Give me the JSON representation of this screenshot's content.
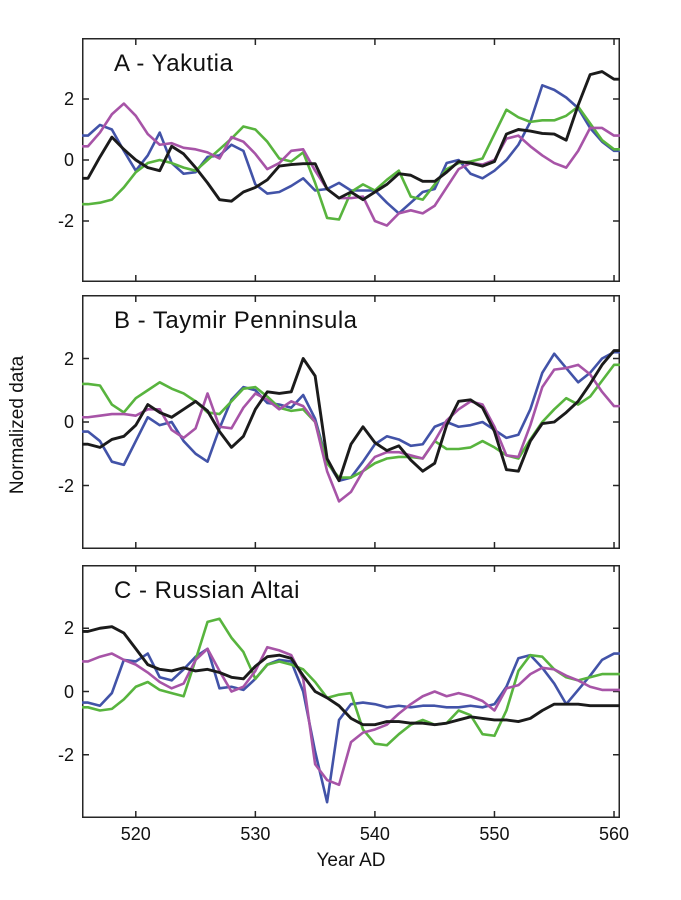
{
  "figure": {
    "xlabel": "Year AD",
    "ylabel": "Normalized data",
    "background": "#ffffff",
    "axis_color": "#262626"
  },
  "chart_data": [
    {
      "type": "line",
      "panel": "A",
      "title": "A - Yakutia",
      "xlabel": "Year AD",
      "ylabel": "Normalized data",
      "xlim": [
        515.5,
        560.5
      ],
      "ylim": [
        -4,
        4
      ],
      "x_ticks": [
        520,
        530,
        540,
        550,
        560
      ],
      "y_ticks": [
        2,
        0,
        -2
      ],
      "grid": false,
      "legend": "none",
      "x_start": 516,
      "x_step": 1,
      "series": [
        {
          "name": "blue",
          "color": "#4253a8",
          "values": [
            0.8,
            1.15,
            1.0,
            0.3,
            -0.35,
            0.15,
            0.9,
            -0.1,
            -0.45,
            -0.4,
            0.1,
            0.15,
            0.5,
            0.3,
            -0.8,
            -1.1,
            -1.05,
            -0.85,
            -0.6,
            -1.0,
            -0.95,
            -0.75,
            -1.0,
            -1.0,
            -1.0,
            -1.4,
            -1.75,
            -1.4,
            -1.05,
            -0.95,
            -0.1,
            0.0,
            -0.45,
            -0.6,
            -0.35,
            0.0,
            0.5,
            1.25,
            2.45,
            2.3,
            2.05,
            1.7,
            1.05,
            0.6,
            0.3
          ]
        },
        {
          "name": "green",
          "color": "#58b43e",
          "values": [
            -1.45,
            -1.4,
            -1.3,
            -0.9,
            -0.4,
            -0.1,
            0.0,
            -0.1,
            -0.25,
            -0.35,
            0.0,
            0.35,
            0.7,
            1.1,
            1.0,
            0.6,
            0.05,
            -0.05,
            0.25,
            -0.75,
            -1.9,
            -1.95,
            -1.05,
            -0.8,
            -1.0,
            -0.65,
            -0.35,
            -1.2,
            -1.3,
            -0.8,
            -0.3,
            -0.1,
            -0.05,
            0.05,
            0.85,
            1.65,
            1.4,
            1.25,
            1.3,
            1.3,
            1.45,
            1.75,
            1.2,
            0.65,
            0.35
          ]
        },
        {
          "name": "magenta",
          "color": "#a754a7",
          "values": [
            0.45,
            0.9,
            1.5,
            1.85,
            1.45,
            0.85,
            0.5,
            0.55,
            0.4,
            0.35,
            0.25,
            0.05,
            0.75,
            0.6,
            0.2,
            -0.3,
            -0.1,
            0.3,
            0.35,
            -0.35,
            -0.95,
            -1.25,
            -1.25,
            -1.2,
            -2.0,
            -2.15,
            -1.75,
            -1.65,
            -1.75,
            -1.5,
            -0.9,
            -0.3,
            -0.1,
            -0.15,
            0.0,
            0.7,
            0.8,
            0.45,
            0.15,
            -0.1,
            -0.25,
            0.3,
            1.05,
            1.05,
            0.8
          ]
        },
        {
          "name": "black",
          "color": "#1b1b1b",
          "values": [
            -0.6,
            0.1,
            0.75,
            0.35,
            0.0,
            -0.25,
            -0.35,
            0.45,
            0.2,
            -0.25,
            -0.75,
            -1.3,
            -1.35,
            -1.05,
            -0.9,
            -0.65,
            -0.2,
            -0.15,
            -0.12,
            -0.12,
            -0.95,
            -1.25,
            -1.05,
            -1.3,
            -1.05,
            -0.8,
            -0.45,
            -0.5,
            -0.7,
            -0.7,
            -0.4,
            -0.05,
            -0.1,
            -0.2,
            -0.05,
            0.85,
            1.0,
            0.95,
            0.87,
            0.85,
            0.65,
            1.8,
            2.8,
            2.9,
            2.65
          ]
        }
      ]
    },
    {
      "type": "line",
      "panel": "B",
      "title": "B - Taymir Penninsula",
      "xlabel": "Year AD",
      "ylabel": "Normalized data",
      "xlim": [
        515.5,
        560.5
      ],
      "ylim": [
        -4,
        4
      ],
      "x_ticks": [
        520,
        530,
        540,
        550,
        560
      ],
      "y_ticks": [
        2,
        0,
        -2
      ],
      "grid": false,
      "legend": "none",
      "x_start": 516,
      "x_step": 1,
      "series": [
        {
          "name": "blue",
          "color": "#4253a8",
          "values": [
            -0.3,
            -0.6,
            -1.25,
            -1.35,
            -0.6,
            0.15,
            -0.1,
            0.0,
            -0.6,
            -1.0,
            -1.25,
            -0.2,
            0.7,
            1.1,
            1.0,
            0.6,
            0.55,
            0.45,
            0.85,
            0.1,
            -1.25,
            -1.85,
            -1.75,
            -1.25,
            -0.7,
            -0.45,
            -0.55,
            -0.75,
            -0.7,
            -0.15,
            0.0,
            -0.15,
            -0.1,
            0.0,
            -0.25,
            -0.5,
            -0.4,
            0.4,
            1.55,
            2.15,
            1.7,
            1.25,
            1.55,
            2.0,
            2.2
          ]
        },
        {
          "name": "green",
          "color": "#58b43e",
          "values": [
            1.2,
            1.15,
            0.55,
            0.3,
            0.75,
            1.0,
            1.25,
            1.05,
            0.9,
            0.65,
            0.3,
            0.25,
            0.65,
            1.05,
            1.1,
            0.8,
            0.45,
            0.35,
            0.4,
            0.0,
            -1.3,
            -1.75,
            -1.75,
            -1.55,
            -1.3,
            -1.15,
            -1.1,
            -1.1,
            -1.15,
            -0.6,
            -0.85,
            -0.85,
            -0.8,
            -0.6,
            -0.8,
            -1.05,
            -1.15,
            -0.55,
            0.0,
            0.4,
            0.75,
            0.55,
            0.8,
            1.3,
            1.8
          ]
        },
        {
          "name": "magenta",
          "color": "#a754a7",
          "values": [
            0.15,
            0.2,
            0.25,
            0.25,
            0.2,
            0.4,
            0.4,
            -0.25,
            -0.5,
            -0.2,
            0.9,
            -0.15,
            -0.2,
            0.45,
            0.9,
            0.7,
            0.4,
            0.65,
            0.5,
            0.0,
            -1.55,
            -2.5,
            -2.2,
            -1.55,
            -1.1,
            -0.95,
            -0.95,
            -1.05,
            -1.15,
            -0.6,
            0.05,
            0.4,
            0.65,
            0.55,
            -0.15,
            -1.05,
            -1.1,
            -0.1,
            1.1,
            1.65,
            1.7,
            1.8,
            1.5,
            0.95,
            0.5
          ]
        },
        {
          "name": "black",
          "color": "#1b1b1b",
          "values": [
            -0.7,
            -0.8,
            -0.55,
            -0.45,
            -0.1,
            0.55,
            0.3,
            0.15,
            0.4,
            0.65,
            0.35,
            -0.3,
            -0.8,
            -0.45,
            0.4,
            0.95,
            0.9,
            0.95,
            2.0,
            1.45,
            -1.15,
            -1.85,
            -0.7,
            -0.15,
            -0.65,
            -0.9,
            -0.75,
            -1.2,
            -1.55,
            -1.3,
            -0.1,
            0.65,
            0.7,
            0.45,
            -0.3,
            -1.5,
            -1.55,
            -0.6,
            -0.05,
            0.0,
            0.3,
            0.65,
            1.2,
            1.8,
            2.25
          ]
        }
      ]
    },
    {
      "type": "line",
      "panel": "C",
      "title": "C - Russian Altai",
      "xlabel": "Year AD",
      "ylabel": "Normalized data",
      "xlim": [
        515.5,
        560.5
      ],
      "ylim": [
        -4,
        4
      ],
      "x_ticks": [
        520,
        530,
        540,
        550,
        560
      ],
      "y_ticks": [
        2,
        0,
        -2
      ],
      "grid": false,
      "legend": "none",
      "x_start": 516,
      "x_step": 1,
      "series": [
        {
          "name": "blue",
          "color": "#4253a8",
          "values": [
            -0.35,
            -0.45,
            -0.05,
            1.0,
            0.95,
            1.2,
            0.45,
            0.35,
            0.7,
            1.1,
            1.35,
            0.1,
            0.15,
            0.05,
            0.4,
            0.85,
            1.0,
            0.95,
            0.0,
            -1.9,
            -3.5,
            -0.9,
            -0.4,
            -0.35,
            -0.4,
            -0.5,
            -0.45,
            -0.5,
            -0.45,
            -0.45,
            -0.5,
            -0.5,
            -0.45,
            -0.5,
            -0.4,
            0.15,
            1.05,
            1.15,
            0.75,
            0.25,
            -0.4,
            0.05,
            0.5,
            1.0,
            1.2
          ]
        },
        {
          "name": "green",
          "color": "#58b43e",
          "values": [
            -0.5,
            -0.6,
            -0.55,
            -0.25,
            0.15,
            0.3,
            0.05,
            -0.05,
            -0.15,
            1.0,
            2.2,
            2.3,
            1.7,
            1.25,
            0.4,
            0.85,
            0.95,
            0.85,
            0.7,
            0.3,
            -0.2,
            -0.1,
            -0.05,
            -1.2,
            -1.65,
            -1.7,
            -1.35,
            -1.05,
            -0.9,
            -1.05,
            -1.0,
            -0.6,
            -0.75,
            -1.35,
            -1.4,
            -0.6,
            0.65,
            1.15,
            1.1,
            0.7,
            0.45,
            0.35,
            0.45,
            0.55,
            0.55
          ]
        },
        {
          "name": "magenta",
          "color": "#a754a7",
          "values": [
            0.95,
            1.1,
            1.2,
            1.0,
            0.85,
            0.6,
            0.3,
            0.1,
            0.25,
            1.0,
            1.35,
            0.65,
            0.0,
            0.15,
            0.65,
            1.4,
            1.3,
            1.15,
            0.4,
            -2.3,
            -2.8,
            -2.95,
            -1.6,
            -1.3,
            -1.2,
            -1.05,
            -0.7,
            -0.4,
            -0.15,
            0.0,
            -0.15,
            -0.05,
            -0.15,
            -0.3,
            -0.6,
            0.1,
            0.2,
            0.55,
            0.75,
            0.7,
            0.5,
            0.35,
            0.15,
            0.05,
            0.05
          ]
        },
        {
          "name": "black",
          "color": "#1b1b1b",
          "values": [
            1.9,
            2.0,
            2.05,
            1.85,
            1.35,
            0.85,
            0.7,
            0.65,
            0.75,
            0.65,
            0.7,
            0.6,
            0.45,
            0.4,
            0.8,
            1.1,
            1.15,
            1.05,
            0.5,
            0.0,
            -0.2,
            -0.45,
            -0.85,
            -1.05,
            -1.05,
            -0.95,
            -0.95,
            -1.0,
            -1.0,
            -1.05,
            -1.0,
            -0.9,
            -0.8,
            -0.85,
            -0.9,
            -0.9,
            -0.95,
            -0.85,
            -0.6,
            -0.4,
            -0.4,
            -0.4,
            -0.45,
            -0.45,
            -0.45
          ]
        }
      ]
    }
  ]
}
